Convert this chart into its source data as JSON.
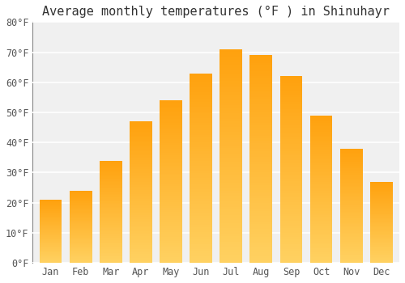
{
  "title": "Average monthly temperatures (°F ) in Shinuhayr",
  "months": [
    "Jan",
    "Feb",
    "Mar",
    "Apr",
    "May",
    "Jun",
    "Jul",
    "Aug",
    "Sep",
    "Oct",
    "Nov",
    "Dec"
  ],
  "values": [
    21,
    24,
    34,
    47,
    54,
    63,
    71,
    69,
    62,
    49,
    38,
    27
  ],
  "ylim": [
    0,
    80
  ],
  "yticks": [
    0,
    10,
    20,
    30,
    40,
    50,
    60,
    70,
    80
  ],
  "ytick_labels": [
    "0°F",
    "10°F",
    "20°F",
    "30°F",
    "40°F",
    "50°F",
    "60°F",
    "70°F",
    "80°F"
  ],
  "background_color": "#ffffff",
  "plot_bg_color": "#f0f0f0",
  "grid_color": "#ffffff",
  "bar_color_bottom": "#FFD060",
  "bar_color_top": "#FFA500",
  "title_fontsize": 11,
  "tick_fontsize": 8.5,
  "bar_width": 0.75
}
